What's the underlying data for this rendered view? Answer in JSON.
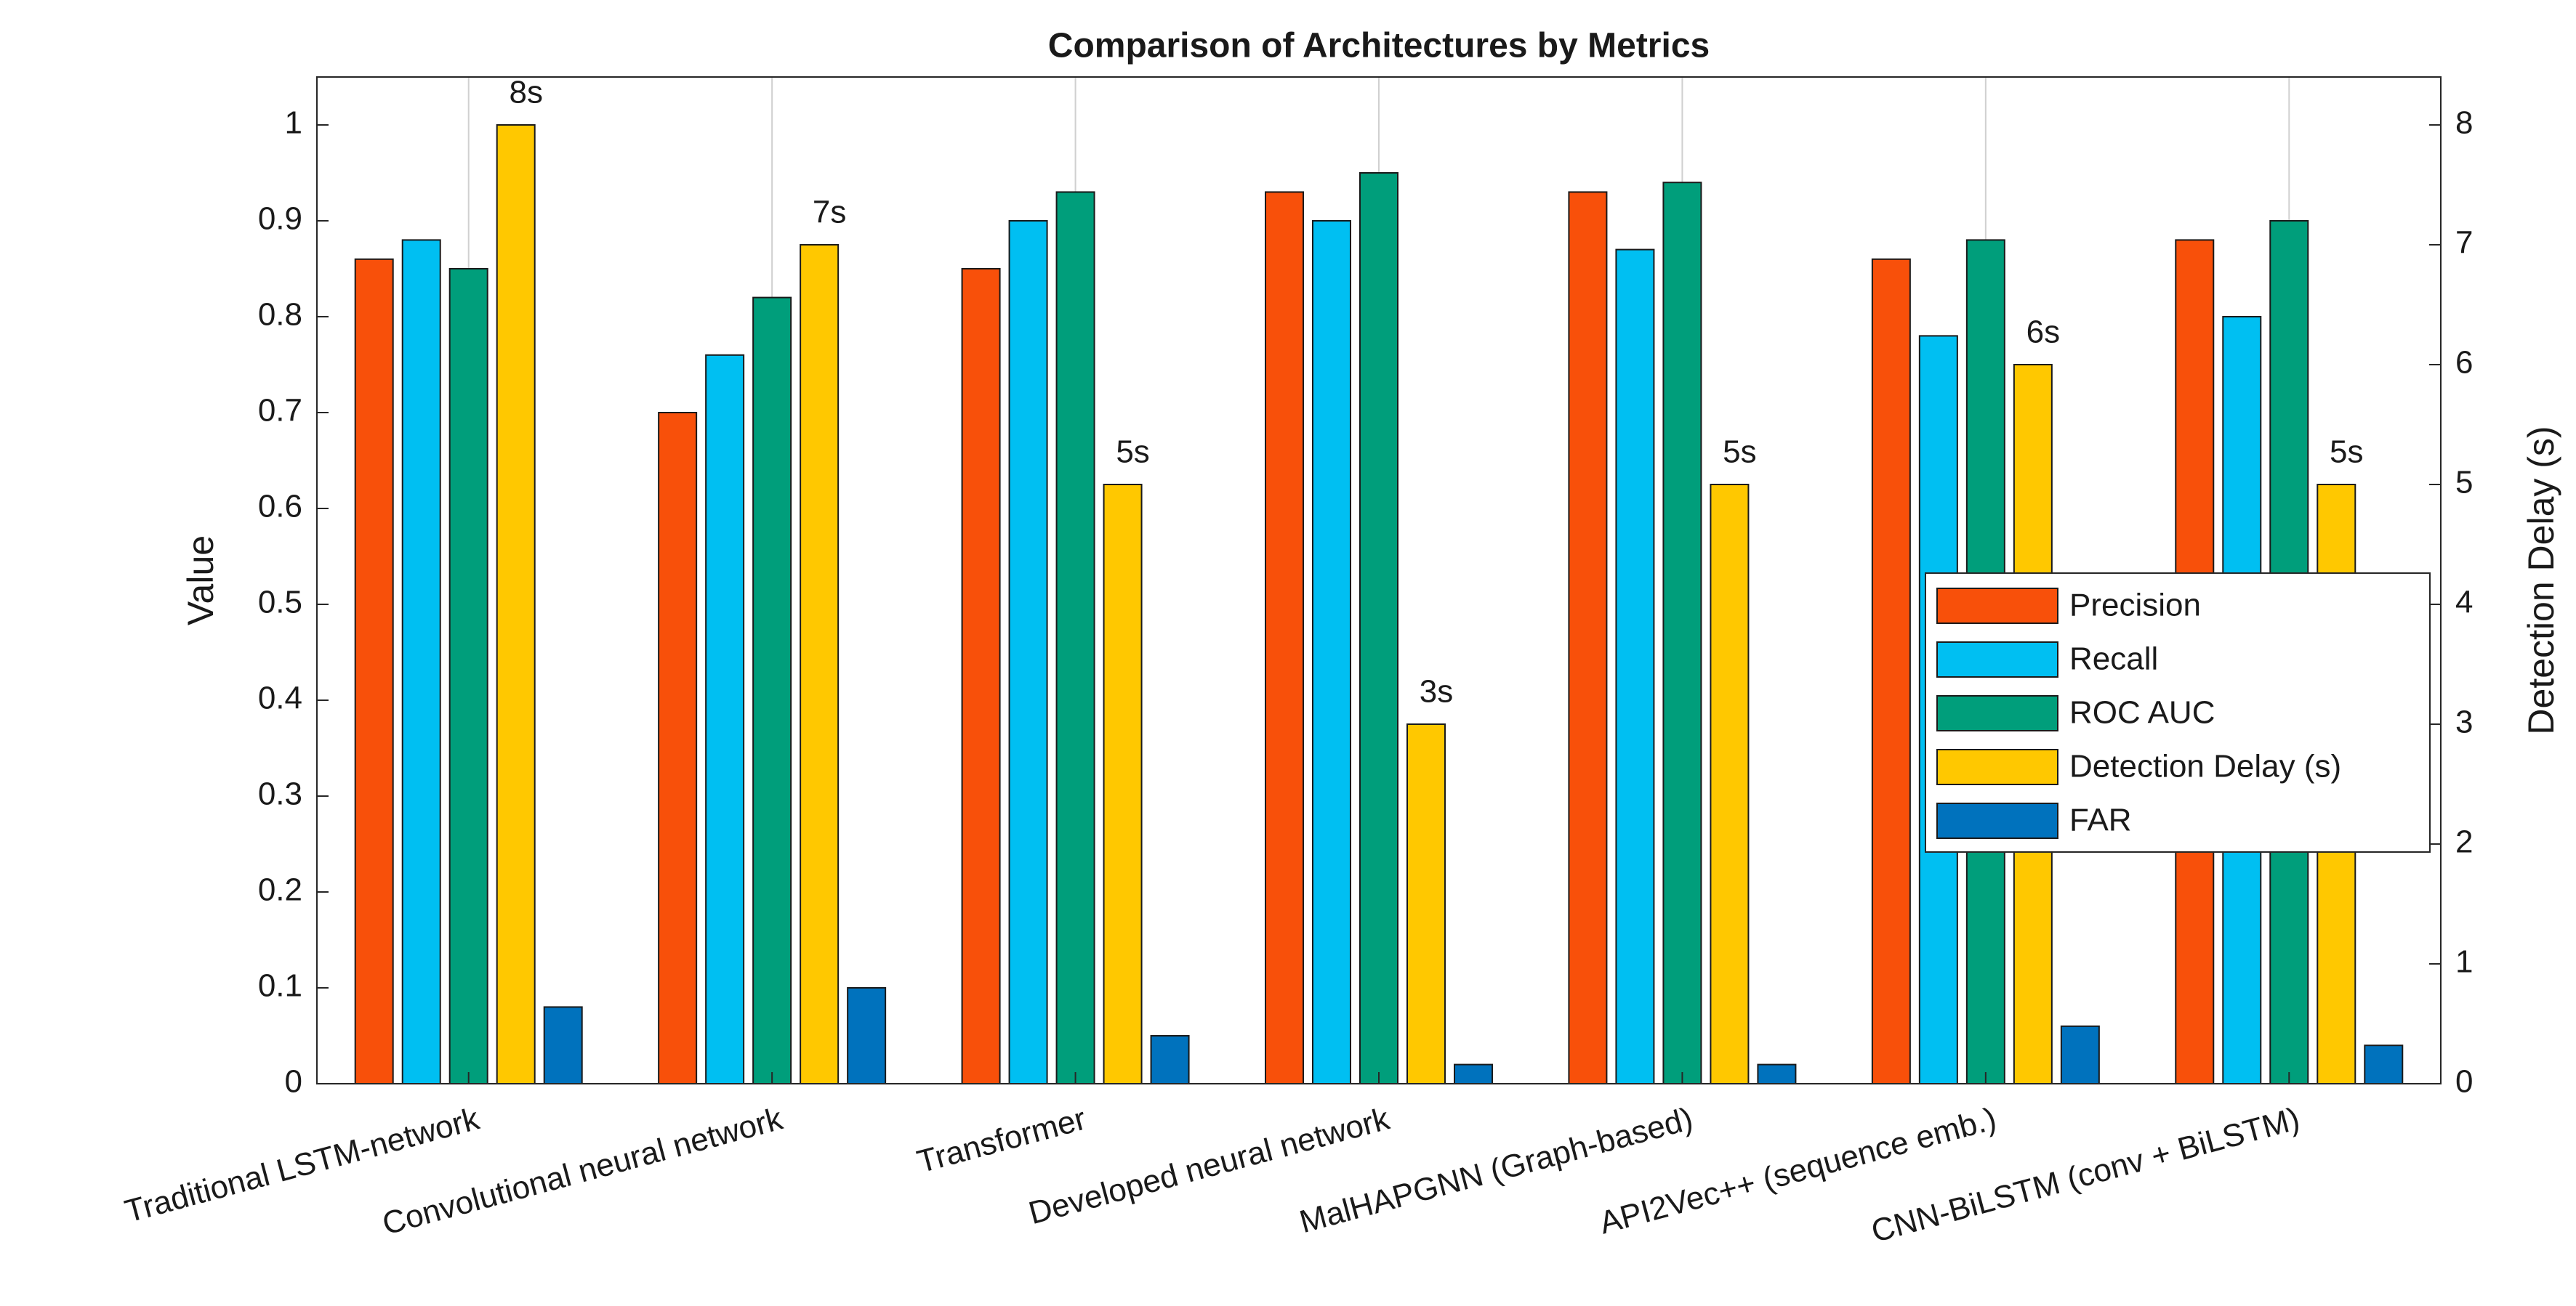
{
  "chart_data": {
    "type": "bar",
    "title": "Comparison of Architectures by Metrics",
    "ylabel": "Value",
    "y2label": "Detection Delay (s)",
    "categories": [
      "Traditional LSTM-network",
      "Convolutional neural network",
      "Transformer",
      "Developed neural network",
      "MalHAPGNN (Graph-based)",
      "API2Vec++ (sequence emb.)",
      "CNN-BiLSTM (conv + BiLSTM)"
    ],
    "series": [
      {
        "name": "Precision",
        "color": "#f8500a",
        "values": [
          0.86,
          0.7,
          0.85,
          0.93,
          0.93,
          0.86,
          0.88
        ]
      },
      {
        "name": "Recall",
        "color": "#00bff2",
        "values": [
          0.88,
          0.76,
          0.9,
          0.9,
          0.87,
          0.78,
          0.8
        ]
      },
      {
        "name": "ROC AUC",
        "color": "#009e7b",
        "values": [
          0.85,
          0.82,
          0.93,
          0.95,
          0.94,
          0.88,
          0.9
        ]
      },
      {
        "name": "Detection Delay (s)",
        "color": "#ffc800",
        "axis": "y2",
        "values": [
          8,
          7,
          5,
          3,
          5,
          6,
          5
        ],
        "value_labels": [
          "8s",
          "7s",
          "5s",
          "3s",
          "5s",
          "6s",
          "5s"
        ]
      },
      {
        "name": "FAR",
        "color": "#0072bd",
        "values": [
          0.08,
          0.1,
          0.05,
          0.02,
          0.02,
          0.06,
          0.04
        ]
      }
    ],
    "ylim": [
      0,
      1.05
    ],
    "yticks": [
      0,
      0.1,
      0.2,
      0.3,
      0.4,
      0.5,
      0.6,
      0.7,
      0.8,
      0.9,
      1
    ],
    "y2lim": [
      0,
      8.4
    ],
    "y2ticks": [
      0,
      1,
      2,
      3,
      4,
      5,
      6,
      7,
      8
    ],
    "grid": "x",
    "legend": "right"
  }
}
